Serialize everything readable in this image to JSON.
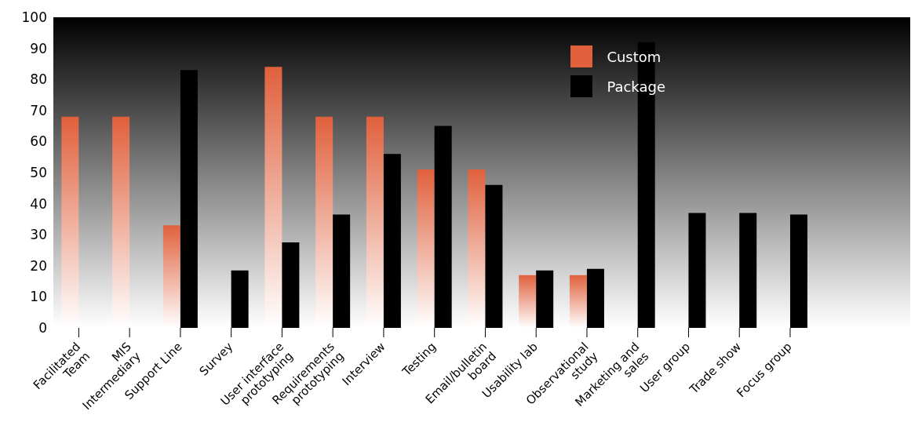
{
  "chart_data": {
    "type": "bar",
    "categories": [
      "Facilitated Team",
      "MIS Intermediary",
      "Support Line",
      "Survey",
      "User interface prototyping",
      "Requirements prototyping",
      "Interview",
      "Testing",
      "Email/bulletin board",
      "Usability lab",
      "Observational study",
      "Marketing and sales",
      "User group",
      "Trade show",
      "Focus group"
    ],
    "series": [
      {
        "name": "Custom",
        "color": "#e0603c",
        "values": [
          68,
          68,
          33,
          null,
          84,
          68,
          68,
          51,
          51,
          17,
          17,
          null,
          null,
          null,
          null
        ]
      },
      {
        "name": "Package",
        "color": "#000000",
        "values": [
          null,
          null,
          83,
          18.5,
          27.5,
          36.5,
          56,
          65,
          46,
          18.5,
          19,
          92,
          37,
          37,
          36.5
        ]
      }
    ],
    "ylim": [
      0,
      100
    ],
    "yticks": [
      0,
      10,
      20,
      30,
      40,
      50,
      60,
      70,
      80,
      90,
      100
    ],
    "legend": "top right"
  }
}
